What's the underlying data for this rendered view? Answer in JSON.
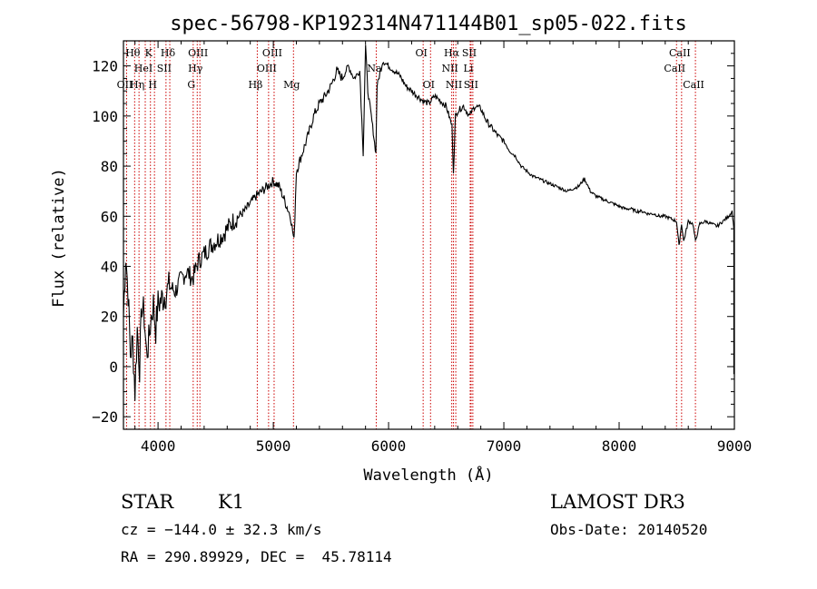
{
  "chart_data": {
    "type": "line",
    "title": "spec-56798-KP192314N471144B01_sp05-022.fits",
    "xlabel": "Wavelength (Å)",
    "ylabel": "Flux (relative)",
    "xlim": [
      3700,
      9000
    ],
    "ylim": [
      -25,
      130
    ],
    "x_ticks": [
      4000,
      5000,
      6000,
      7000,
      8000,
      9000
    ],
    "y_ticks": [
      -20,
      0,
      20,
      40,
      60,
      80,
      100,
      120
    ],
    "x_tick_labels": [
      "4000",
      "5000",
      "6000",
      "7000",
      "8000",
      "9000"
    ],
    "y_tick_labels": [
      "−20",
      "0",
      "20",
      "40",
      "60",
      "80",
      "100",
      "120"
    ],
    "series": [
      {
        "name": "spectrum",
        "color": "#000000",
        "x": [
          3700,
          3720,
          3740,
          3760,
          3780,
          3800,
          3820,
          3840,
          3860,
          3880,
          3900,
          3920,
          3940,
          3960,
          3980,
          4000,
          4050,
          4100,
          4150,
          4200,
          4250,
          4300,
          4350,
          4400,
          4450,
          4500,
          4550,
          4600,
          4650,
          4700,
          4750,
          4800,
          4850,
          4900,
          4950,
          5000,
          5050,
          5100,
          5150,
          5180,
          5200,
          5250,
          5300,
          5350,
          5400,
          5450,
          5500,
          5550,
          5600,
          5650,
          5700,
          5750,
          5780,
          5800,
          5820,
          5850,
          5890,
          5900,
          5950,
          6000,
          6050,
          6100,
          6150,
          6200,
          6250,
          6300,
          6350,
          6400,
          6450,
          6500,
          6550,
          6563,
          6580,
          6600,
          6650,
          6700,
          6750,
          6800,
          6850,
          6900,
          6950,
          7000,
          7050,
          7100,
          7150,
          7200,
          7250,
          7300,
          7350,
          7400,
          7450,
          7500,
          7550,
          7600,
          7650,
          7700,
          7750,
          7800,
          7850,
          7900,
          7950,
          8000,
          8050,
          8100,
          8150,
          8200,
          8250,
          8300,
          8350,
          8400,
          8450,
          8498,
          8520,
          8542,
          8560,
          8600,
          8640,
          8662,
          8700,
          8750,
          8800,
          8850,
          8900,
          8950,
          8980,
          8995
        ],
        "y": [
          20,
          45,
          30,
          5,
          10,
          -10,
          15,
          0,
          25,
          20,
          5,
          10,
          20,
          25,
          15,
          25,
          28,
          32,
          30,
          35,
          38,
          35,
          42,
          45,
          48,
          50,
          52,
          55,
          58,
          60,
          62,
          65,
          68,
          70,
          72,
          74,
          72,
          66,
          60,
          50,
          78,
          85,
          92,
          100,
          105,
          108,
          112,
          118,
          115,
          120,
          115,
          118,
          85,
          128,
          110,
          100,
          85,
          112,
          122,
          120,
          118,
          116,
          112,
          110,
          108,
          106,
          105,
          108,
          106,
          104,
          96,
          78,
          100,
          102,
          104,
          100,
          104,
          103,
          98,
          95,
          92,
          90,
          86,
          84,
          80,
          78,
          76,
          75,
          74,
          73,
          72,
          71,
          70,
          71,
          72,
          75,
          70,
          68,
          67,
          66,
          65,
          64,
          63,
          63,
          62,
          62,
          61,
          61,
          60,
          60,
          59,
          58,
          48,
          57,
          50,
          58,
          57,
          50,
          57,
          58,
          57,
          56,
          58,
          60,
          62,
          55
        ]
      }
    ],
    "lines": [
      {
        "label": "Hθ",
        "x": 3797,
        "row": 1
      },
      {
        "label": "OII",
        "x": 3727,
        "row": 3
      },
      {
        "label": "Hη",
        "x": 3835,
        "row": 3
      },
      {
        "label": "HeI",
        "x": 3889,
        "row": 2
      },
      {
        "label": "K",
        "x": 3934,
        "row": 1
      },
      {
        "label": "SII",
        "x": 4069,
        "row": 2
      },
      {
        "label": "H",
        "x": 3969,
        "row": 3
      },
      {
        "label": "Hδ",
        "x": 4102,
        "row": 1
      },
      {
        "label": "OIII",
        "x": 4363,
        "row": 1
      },
      {
        "label": "Hγ",
        "x": 4340,
        "row": 2
      },
      {
        "label": "G",
        "x": 4305,
        "row": 3
      },
      {
        "label": "Hβ",
        "x": 4861,
        "row": 3
      },
      {
        "label": "OIII",
        "x": 5007,
        "row": 1
      },
      {
        "label": "OIII",
        "x": 4959,
        "row": 2
      },
      {
        "label": "Mg",
        "x": 5175,
        "row": 3
      },
      {
        "label": "Na",
        "x": 5893,
        "row": 2
      },
      {
        "label": "OI",
        "x": 6300,
        "row": 1
      },
      {
        "label": "OI",
        "x": 6364,
        "row": 3
      },
      {
        "label": "Hα",
        "x": 6563,
        "row": 1
      },
      {
        "label": "NII",
        "x": 6548,
        "row": 2
      },
      {
        "label": "NII",
        "x": 6583,
        "row": 3
      },
      {
        "label": "SII",
        "x": 6716,
        "row": 1
      },
      {
        "label": "Li",
        "x": 6708,
        "row": 2
      },
      {
        "label": "SII",
        "x": 6731,
        "row": 3
      },
      {
        "label": "CaII",
        "x": 8498,
        "row": 2
      },
      {
        "label": "CaII",
        "x": 8542,
        "row": 1
      },
      {
        "label": "CaII",
        "x": 8662,
        "row": 3
      }
    ]
  },
  "info": {
    "object_class": "STAR",
    "subclass": "K1",
    "survey": "LAMOST DR3",
    "cz": "cz = −144.0 ± 32.3 km/s",
    "obs_date": "Obs-Date: 20140520",
    "coords": "RA = 290.89929, DEC =  45.78114"
  },
  "colors": {
    "spectrum": "#000000",
    "line_marker": "#cc0000",
    "axes": "#000000"
  }
}
